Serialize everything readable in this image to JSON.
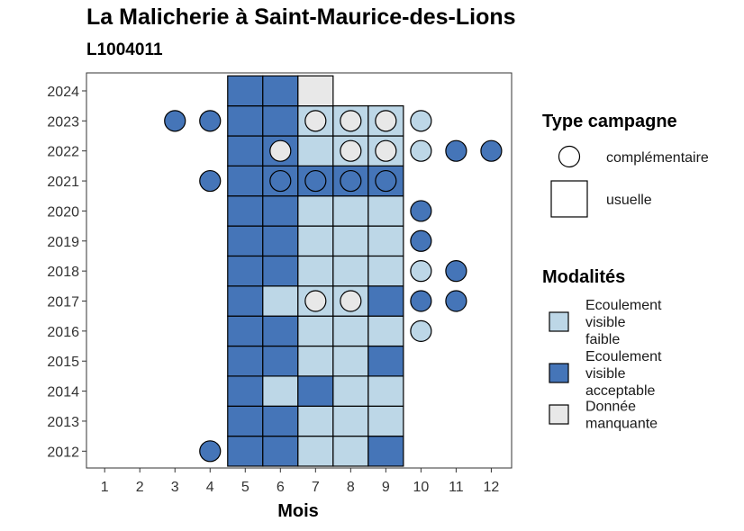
{
  "chart_data": {
    "type": "heatmap",
    "title": "La Malicherie à Saint-Maurice-des-Lions",
    "subtitle": "L1004011",
    "xlabel": "Mois",
    "ylabel": "",
    "x_ticks": [
      "1",
      "2",
      "3",
      "4",
      "5",
      "6",
      "7",
      "8",
      "9",
      "10",
      "11",
      "12"
    ],
    "y_ticks": [
      "2012",
      "2013",
      "2014",
      "2015",
      "2016",
      "2017",
      "2018",
      "2019",
      "2020",
      "2021",
      "2022",
      "2023",
      "2024"
    ],
    "grid": false,
    "legend_position": "right",
    "colors": {
      "faible": "#bdd7e7",
      "acceptable": "#4575b8",
      "manquante": "#e8e8e8"
    },
    "legend": {
      "type_title": "Type campagne",
      "type_entries": [
        {
          "key": "complementaire",
          "label": "complémentaire",
          "shape": "circle"
        },
        {
          "key": "usuelle",
          "label": "usuelle",
          "shape": "square"
        }
      ],
      "modalites_title": "Modalités",
      "modalites_entries": [
        {
          "key": "faible",
          "lines": [
            "Ecoulement",
            "visible",
            "faible"
          ]
        },
        {
          "key": "acceptable",
          "lines": [
            "Ecoulement",
            "visible",
            "acceptable"
          ]
        },
        {
          "key": "manquante",
          "lines": [
            "Donnée",
            "manquante"
          ]
        }
      ]
    },
    "usuelle": [
      {
        "year": 2012,
        "cells": [
          [
            "5",
            "acceptable"
          ],
          [
            "6",
            "acceptable"
          ],
          [
            "7",
            "faible"
          ],
          [
            "8",
            "faible"
          ],
          [
            "9",
            "acceptable"
          ]
        ]
      },
      {
        "year": 2013,
        "cells": [
          [
            "5",
            "acceptable"
          ],
          [
            "6",
            "acceptable"
          ],
          [
            "7",
            "faible"
          ],
          [
            "8",
            "faible"
          ],
          [
            "9",
            "faible"
          ]
        ]
      },
      {
        "year": 2014,
        "cells": [
          [
            "5",
            "acceptable"
          ],
          [
            "6",
            "faible"
          ],
          [
            "7",
            "acceptable"
          ],
          [
            "8",
            "faible"
          ],
          [
            "9",
            "faible"
          ]
        ]
      },
      {
        "year": 2015,
        "cells": [
          [
            "5",
            "acceptable"
          ],
          [
            "6",
            "acceptable"
          ],
          [
            "7",
            "faible"
          ],
          [
            "8",
            "faible"
          ],
          [
            "9",
            "acceptable"
          ]
        ]
      },
      {
        "year": 2016,
        "cells": [
          [
            "5",
            "acceptable"
          ],
          [
            "6",
            "acceptable"
          ],
          [
            "7",
            "faible"
          ],
          [
            "8",
            "faible"
          ],
          [
            "9",
            "faible"
          ]
        ]
      },
      {
        "year": 2017,
        "cells": [
          [
            "5",
            "acceptable"
          ],
          [
            "6",
            "faible"
          ],
          [
            "7",
            "faible"
          ],
          [
            "8",
            "faible"
          ],
          [
            "9",
            "acceptable"
          ]
        ]
      },
      {
        "year": 2018,
        "cells": [
          [
            "5",
            "acceptable"
          ],
          [
            "6",
            "acceptable"
          ],
          [
            "7",
            "faible"
          ],
          [
            "8",
            "faible"
          ],
          [
            "9",
            "faible"
          ]
        ]
      },
      {
        "year": 2019,
        "cells": [
          [
            "5",
            "acceptable"
          ],
          [
            "6",
            "acceptable"
          ],
          [
            "7",
            "faible"
          ],
          [
            "8",
            "faible"
          ],
          [
            "9",
            "faible"
          ]
        ]
      },
      {
        "year": 2020,
        "cells": [
          [
            "5",
            "acceptable"
          ],
          [
            "6",
            "acceptable"
          ],
          [
            "7",
            "faible"
          ],
          [
            "8",
            "faible"
          ],
          [
            "9",
            "faible"
          ]
        ]
      },
      {
        "year": 2021,
        "cells": [
          [
            "5",
            "acceptable"
          ],
          [
            "6",
            "acceptable"
          ],
          [
            "7",
            "acceptable"
          ],
          [
            "8",
            "acceptable"
          ],
          [
            "9",
            "acceptable"
          ]
        ]
      },
      {
        "year": 2022,
        "cells": [
          [
            "5",
            "acceptable"
          ],
          [
            "6",
            "acceptable"
          ],
          [
            "7",
            "faible"
          ],
          [
            "8",
            "faible"
          ],
          [
            "9",
            "faible"
          ]
        ]
      },
      {
        "year": 2023,
        "cells": [
          [
            "5",
            "acceptable"
          ],
          [
            "6",
            "acceptable"
          ],
          [
            "7",
            "faible"
          ],
          [
            "8",
            "faible"
          ],
          [
            "9",
            "faible"
          ]
        ]
      },
      {
        "year": 2024,
        "cells": [
          [
            "5",
            "acceptable"
          ],
          [
            "6",
            "acceptable"
          ],
          [
            "7",
            "manquante"
          ]
        ]
      }
    ],
    "complementaire": [
      {
        "year": 2012,
        "points": [
          [
            "4",
            "acceptable"
          ]
        ]
      },
      {
        "year": 2016,
        "points": [
          [
            "10",
            "faible"
          ]
        ]
      },
      {
        "year": 2017,
        "points": [
          [
            "7",
            "manquante"
          ],
          [
            "8",
            "manquante"
          ],
          [
            "10",
            "acceptable"
          ],
          [
            "11",
            "acceptable"
          ]
        ]
      },
      {
        "year": 2018,
        "points": [
          [
            "10",
            "faible"
          ],
          [
            "11",
            "acceptable"
          ]
        ]
      },
      {
        "year": 2019,
        "points": [
          [
            "10",
            "acceptable"
          ]
        ]
      },
      {
        "year": 2020,
        "points": [
          [
            "10",
            "acceptable"
          ]
        ]
      },
      {
        "year": 2021,
        "points": [
          [
            "4",
            "acceptable"
          ],
          [
            "6",
            "acceptable"
          ],
          [
            "7",
            "acceptable"
          ],
          [
            "8",
            "acceptable"
          ],
          [
            "9",
            "acceptable"
          ]
        ]
      },
      {
        "year": 2022,
        "points": [
          [
            "6",
            "manquante"
          ],
          [
            "8",
            "manquante"
          ],
          [
            "9",
            "manquante"
          ],
          [
            "10",
            "faible"
          ],
          [
            "11",
            "acceptable"
          ],
          [
            "12",
            "acceptable"
          ]
        ]
      },
      {
        "year": 2023,
        "points": [
          [
            "3",
            "acceptable"
          ],
          [
            "4",
            "acceptable"
          ],
          [
            "7",
            "manquante"
          ],
          [
            "8",
            "manquante"
          ],
          [
            "9",
            "manquante"
          ],
          [
            "10",
            "faible"
          ]
        ]
      }
    ]
  }
}
